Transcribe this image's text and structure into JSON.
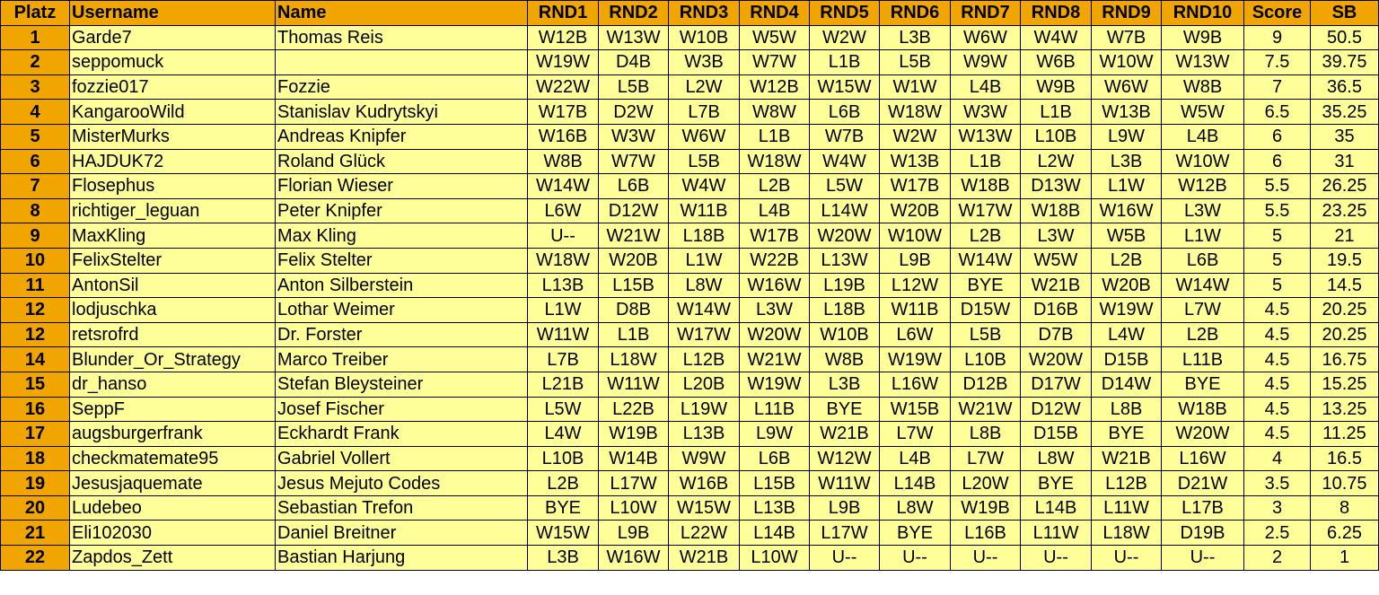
{
  "colors": {
    "header_bg": "#f0a500",
    "rank_bg": "#f0a500",
    "cell_bg": "#ffff99",
    "border": "#000000"
  },
  "columns": [
    "Platz",
    "Username",
    "Name",
    "RND1",
    "RND2",
    "RND3",
    "RND4",
    "RND5",
    "RND6",
    "RND7",
    "RND8",
    "RND9",
    "RND10",
    "Score",
    "SB"
  ],
  "rows": [
    {
      "platz": "1",
      "username": "Garde7",
      "name": "Thomas Reis",
      "rounds": [
        "W12B",
        "W13W",
        "W10B",
        "W5W",
        "W2W",
        "L3B",
        "W6W",
        "W4W",
        "W7B",
        "W9B"
      ],
      "score": "9",
      "sb": "50.5"
    },
    {
      "platz": "2",
      "username": "seppomuck",
      "name": "",
      "rounds": [
        "W19W",
        "D4B",
        "W3B",
        "W7W",
        "L1B",
        "L5B",
        "W9W",
        "W6B",
        "W10W",
        "W13W"
      ],
      "score": "7.5",
      "sb": "39.75"
    },
    {
      "platz": "3",
      "username": "fozzie017",
      "name": "Fozzie",
      "rounds": [
        "W22W",
        "L5B",
        "L2W",
        "W12B",
        "W15W",
        "W1W",
        "L4B",
        "W9B",
        "W6W",
        "W8B"
      ],
      "score": "7",
      "sb": "36.5"
    },
    {
      "platz": "4",
      "username": "KangarooWild",
      "name": "Stanislav Kudrytskyi",
      "rounds": [
        "W17B",
        "D2W",
        "L7B",
        "W8W",
        "L6B",
        "W18W",
        "W3W",
        "L1B",
        "W13B",
        "W5W"
      ],
      "score": "6.5",
      "sb": "35.25"
    },
    {
      "platz": "5",
      "username": "MisterMurks",
      "name": "Andreas Knipfer",
      "rounds": [
        "W16B",
        "W3W",
        "W6W",
        "L1B",
        "W7B",
        "W2W",
        "W13W",
        "L10B",
        "L9W",
        "L4B"
      ],
      "score": "6",
      "sb": "35"
    },
    {
      "platz": "6",
      "username": "HAJDUK72",
      "name": "Roland Glück",
      "rounds": [
        "W8B",
        "W7W",
        "L5B",
        "W18W",
        "W4W",
        "W13B",
        "L1B",
        "L2W",
        "L3B",
        "W10W"
      ],
      "score": "6",
      "sb": "31"
    },
    {
      "platz": "7",
      "username": "Flosephus",
      "name": "Florian Wieser",
      "rounds": [
        "W14W",
        "L6B",
        "W4W",
        "L2B",
        "L5W",
        "W17B",
        "W18B",
        "D13W",
        "L1W",
        "W12B"
      ],
      "score": "5.5",
      "sb": "26.25"
    },
    {
      "platz": "8",
      "username": "richtiger_leguan",
      "name": "Peter Knipfer",
      "rounds": [
        "L6W",
        "D12W",
        "W11B",
        "L4B",
        "L14W",
        "W20B",
        "W17W",
        "W18B",
        "W16W",
        "L3W"
      ],
      "score": "5.5",
      "sb": "23.25"
    },
    {
      "platz": "9",
      "username": "MaxKling",
      "name": "Max Kling",
      "rounds": [
        "U--",
        "W21W",
        "L18B",
        "W17B",
        "W20W",
        "W10W",
        "L2B",
        "L3W",
        "W5B",
        "L1W"
      ],
      "score": "5",
      "sb": "21"
    },
    {
      "platz": "10",
      "username": "FelixStelter",
      "name": "Felix Stelter",
      "rounds": [
        "W18W",
        "W20B",
        "L1W",
        "W22B",
        "L13W",
        "L9B",
        "W14W",
        "W5W",
        "L2B",
        "L6B"
      ],
      "score": "5",
      "sb": "19.5"
    },
    {
      "platz": "11",
      "username": "AntonSil",
      "name": "Anton Silberstein",
      "rounds": [
        "L13B",
        "L15B",
        "L8W",
        "W16W",
        "L19B",
        "L12W",
        "BYE",
        "W21B",
        "W20B",
        "W14W"
      ],
      "score": "5",
      "sb": "14.5"
    },
    {
      "platz": "12",
      "username": "lodjuschka",
      "name": "Lothar Weimer",
      "rounds": [
        "L1W",
        "D8B",
        "W14W",
        "L3W",
        "L18B",
        "W11B",
        "D15W",
        "D16B",
        "W19W",
        "L7W"
      ],
      "score": "4.5",
      "sb": "20.25"
    },
    {
      "platz": "12",
      "username": "retsrofrd",
      "name": "Dr. Forster",
      "rounds": [
        "W11W",
        "L1B",
        "W17W",
        "W20W",
        "W10B",
        "L6W",
        "L5B",
        "D7B",
        "L4W",
        "L2B"
      ],
      "score": "4.5",
      "sb": "20.25"
    },
    {
      "platz": "14",
      "username": "Blunder_Or_Strategy",
      "name": "Marco Treiber",
      "rounds": [
        "L7B",
        "L18W",
        "L12B",
        "W21W",
        "W8B",
        "W19W",
        "L10B",
        "W20W",
        "D15B",
        "L11B"
      ],
      "score": "4.5",
      "sb": "16.75"
    },
    {
      "platz": "15",
      "username": "dr_hanso",
      "name": "Stefan Bleysteiner",
      "rounds": [
        "L21B",
        "W11W",
        "L20B",
        "W19W",
        "L3B",
        "L16W",
        "D12B",
        "D17W",
        "D14W",
        "BYE"
      ],
      "score": "4.5",
      "sb": "15.25"
    },
    {
      "platz": "16",
      "username": "SeppF",
      "name": "Josef Fischer",
      "rounds": [
        "L5W",
        "L22B",
        "L19W",
        "L11B",
        "BYE",
        "W15B",
        "W21W",
        "D12W",
        "L8B",
        "W18B"
      ],
      "score": "4.5",
      "sb": "13.25"
    },
    {
      "platz": "17",
      "username": "augsburgerfrank",
      "name": "Eckhardt Frank",
      "rounds": [
        "L4W",
        "W19B",
        "L13B",
        "L9W",
        "W21B",
        "L7W",
        "L8B",
        "D15B",
        "BYE",
        "W20W"
      ],
      "score": "4.5",
      "sb": "11.25"
    },
    {
      "platz": "18",
      "username": "checkmatemate95",
      "name": "Gabriel Vollert",
      "rounds": [
        "L10B",
        "W14B",
        "W9W",
        "L6B",
        "W12W",
        "L4B",
        "L7W",
        "L8W",
        "W21B",
        "L16W"
      ],
      "score": "4",
      "sb": "16.5"
    },
    {
      "platz": "19",
      "username": "Jesusjaquemate",
      "name": "Jesus Mejuto Codes",
      "rounds": [
        "L2B",
        "L17W",
        "W16B",
        "L15B",
        "W11W",
        "L14B",
        "L20W",
        "BYE",
        "L12B",
        "D21W"
      ],
      "score": "3.5",
      "sb": "10.75"
    },
    {
      "platz": "20",
      "username": "Ludebeo",
      "name": "Sebastian Trefon",
      "rounds": [
        "BYE",
        "L10W",
        "W15W",
        "L13B",
        "L9B",
        "L8W",
        "W19B",
        "L14B",
        "L11W",
        "L17B"
      ],
      "score": "3",
      "sb": "8"
    },
    {
      "platz": "21",
      "username": "Eli102030",
      "name": "Daniel Breitner",
      "rounds": [
        "W15W",
        "L9B",
        "L22W",
        "L14B",
        "L17W",
        "BYE",
        "L16B",
        "L11W",
        "L18W",
        "D19B"
      ],
      "score": "2.5",
      "sb": "6.25"
    },
    {
      "platz": "22",
      "username": "Zapdos_Zett",
      "name": "Bastian Harjung",
      "rounds": [
        "L3B",
        "W16W",
        "W21B",
        "L10W",
        "U--",
        "U--",
        "U--",
        "U--",
        "U--",
        "U--"
      ],
      "score": "2",
      "sb": "1"
    }
  ]
}
